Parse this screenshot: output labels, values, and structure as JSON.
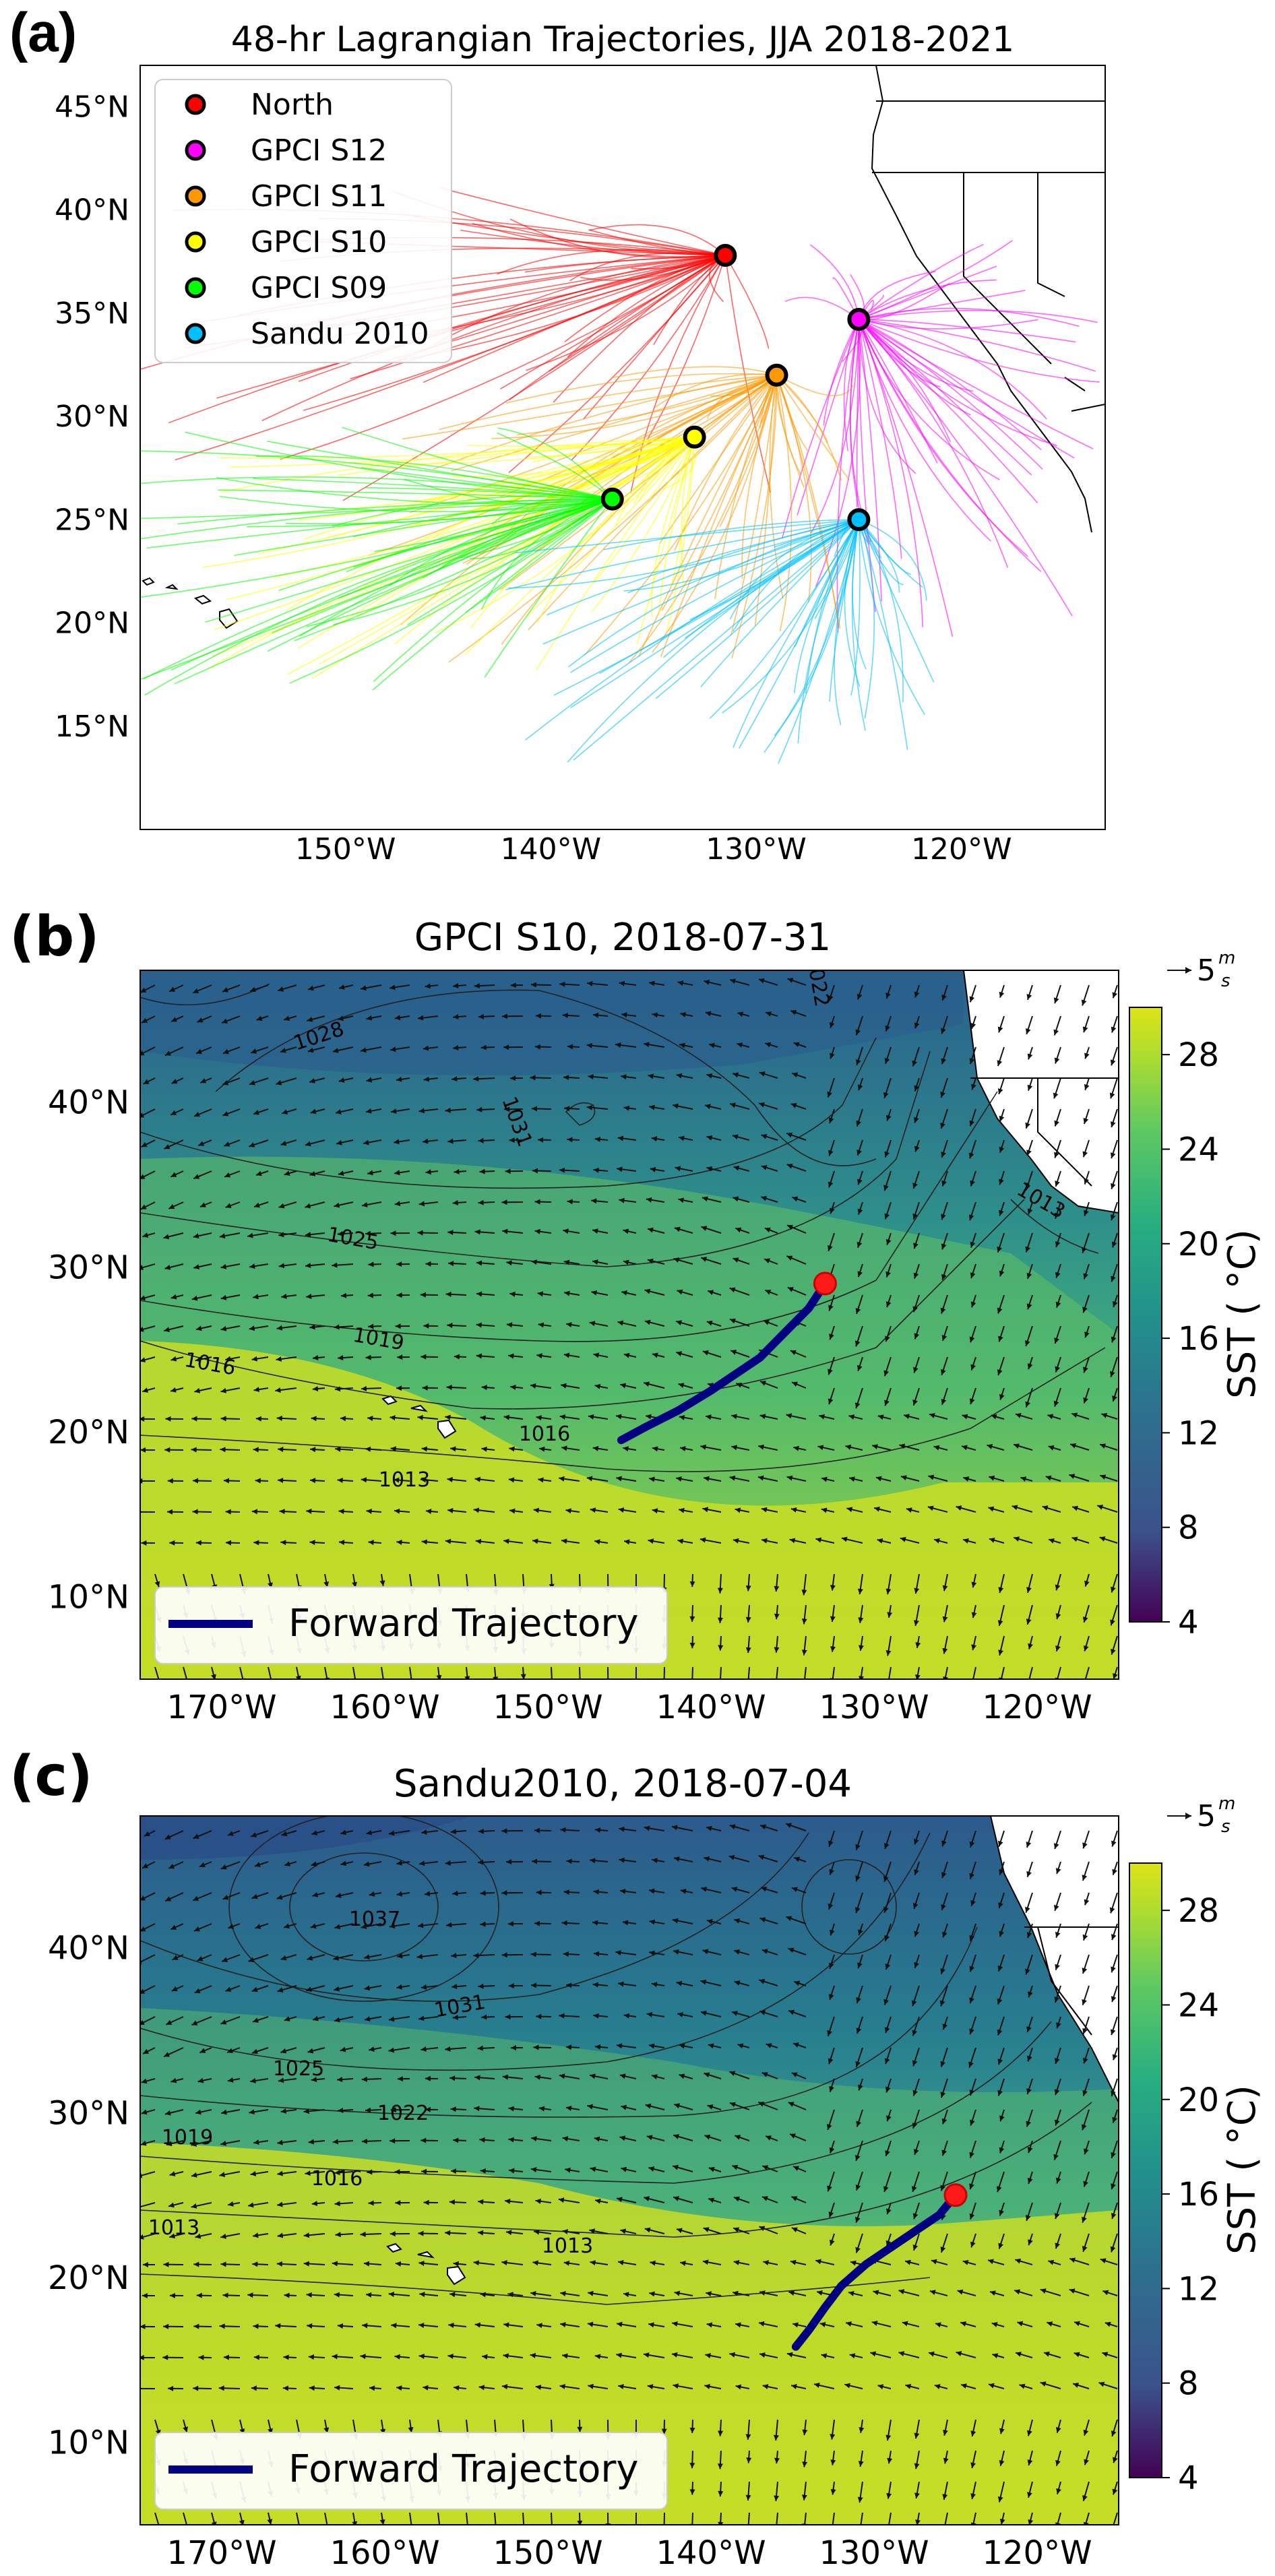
{
  "panels": {
    "a": {
      "letter": "(a)",
      "title": "48-hr Lagrangian Trajectories, JJA 2018-2021",
      "legend": [
        {
          "label": "North",
          "color": "#ff0000"
        },
        {
          "label": "GPCI S12",
          "color": "#ff00ff"
        },
        {
          "label": "GPCI S11",
          "color": "#ff9900"
        },
        {
          "label": "GPCI S10",
          "color": "#ffff00"
        },
        {
          "label": "GPCI S09",
          "color": "#00ff00"
        },
        {
          "label": "Sandu 2010",
          "color": "#00bfff"
        }
      ],
      "lat_labels": [
        "45°N",
        "40°N",
        "35°N",
        "30°N",
        "25°N",
        "20°N",
        "15°N"
      ],
      "lon_labels": [
        "150°W",
        "140°W",
        "130°W",
        "120°W"
      ]
    },
    "b": {
      "letter": "(b)",
      "title": "GPCI S10, 2018-07-31",
      "legend_label": "Forward Trajectory",
      "quiver_key": "5",
      "quiver_num": "m",
      "quiver_den": "s",
      "colorbar_label": "SST ( °C)",
      "colorbar_ticks": [
        "28",
        "24",
        "20",
        "16",
        "12",
        "8",
        "4"
      ],
      "contour_labels": [
        "1028",
        "1031",
        "1025",
        "1019",
        "1016",
        "1016",
        "1013",
        "1013",
        "1022"
      ],
      "lat_labels": [
        "40°N",
        "30°N",
        "20°N",
        "10°N"
      ],
      "lon_labels": [
        "170°W",
        "160°W",
        "150°W",
        "140°W",
        "130°W",
        "120°W"
      ]
    },
    "c": {
      "letter": "(c)",
      "title": "Sandu2010, 2018-07-04",
      "legend_label": "Forward Trajectory",
      "quiver_key": "5",
      "quiver_num": "m",
      "quiver_den": "s",
      "colorbar_label": "SST ( °C)",
      "colorbar_ticks": [
        "28",
        "24",
        "20",
        "16",
        "12",
        "8",
        "4"
      ],
      "contour_labels": [
        "1037",
        "1031",
        "1025",
        "1022",
        "1019",
        "1016",
        "1013",
        "1013"
      ],
      "lat_labels": [
        "40°N",
        "30°N",
        "20°N",
        "10°N"
      ],
      "lon_labels": [
        "170°W",
        "160°W",
        "150°W",
        "140°W",
        "130°W",
        "120°W"
      ]
    }
  },
  "chart_data": [
    {
      "type": "scatter",
      "title": "48-hr Lagrangian Trajectories, JJA 2018-2021",
      "xlabel": "",
      "ylabel": "",
      "xlim": [
        -160,
        -113
      ],
      "ylim": [
        10,
        47
      ],
      "series": [
        {
          "name": "North",
          "x": [
            -131.5
          ],
          "y": [
            37.8
          ]
        },
        {
          "name": "GPCI S12",
          "x": [
            -125
          ],
          "y": [
            34.7
          ]
        },
        {
          "name": "GPCI S11",
          "x": [
            -129
          ],
          "y": [
            32
          ]
        },
        {
          "name": "GPCI S10",
          "x": [
            -133
          ],
          "y": [
            29
          ]
        },
        {
          "name": "GPCI S09",
          "x": [
            -137
          ],
          "y": [
            26
          ]
        },
        {
          "name": "Sandu 2010",
          "x": [
            -125
          ],
          "y": [
            25
          ]
        }
      ]
    },
    {
      "type": "line",
      "title": "GPCI S10, 2018-07-31",
      "xlabel": "",
      "ylabel": "",
      "xlim": [
        -175,
        -115
      ],
      "ylim": [
        5,
        48
      ],
      "colorbar": {
        "label": "SST ( °C)",
        "range": [
          4,
          30
        ],
        "ticks": [
          4,
          8,
          12,
          16,
          20,
          24,
          28
        ]
      },
      "series": [
        {
          "name": "Forward Trajectory",
          "x": [
            -133,
            -134,
            -135.5,
            -137,
            -138.5,
            -140,
            -142,
            -144,
            -145.5
          ],
          "y": [
            29,
            27.5,
            26,
            24.5,
            23.5,
            22.5,
            21.3,
            20.3,
            19.5
          ]
        }
      ],
      "start_point": {
        "x": -133,
        "y": 29
      }
    },
    {
      "type": "line",
      "title": "Sandu2010, 2018-07-04",
      "xlabel": "",
      "ylabel": "",
      "xlim": [
        -175,
        -115
      ],
      "ylim": [
        5,
        48
      ],
      "colorbar": {
        "label": "SST ( °C)",
        "range": [
          4,
          30
        ],
        "ticks": [
          4,
          8,
          12,
          16,
          20,
          24,
          28
        ]
      },
      "series": [
        {
          "name": "Forward Trajectory",
          "x": [
            -125,
            -126,
            -127.5,
            -129,
            -130.5,
            -132,
            -133,
            -134,
            -134.8
          ],
          "y": [
            25,
            23.8,
            22.8,
            21.8,
            20.8,
            19.5,
            18.2,
            16.8,
            15.8
          ]
        }
      ],
      "start_point": {
        "x": -125,
        "y": 25
      }
    }
  ]
}
